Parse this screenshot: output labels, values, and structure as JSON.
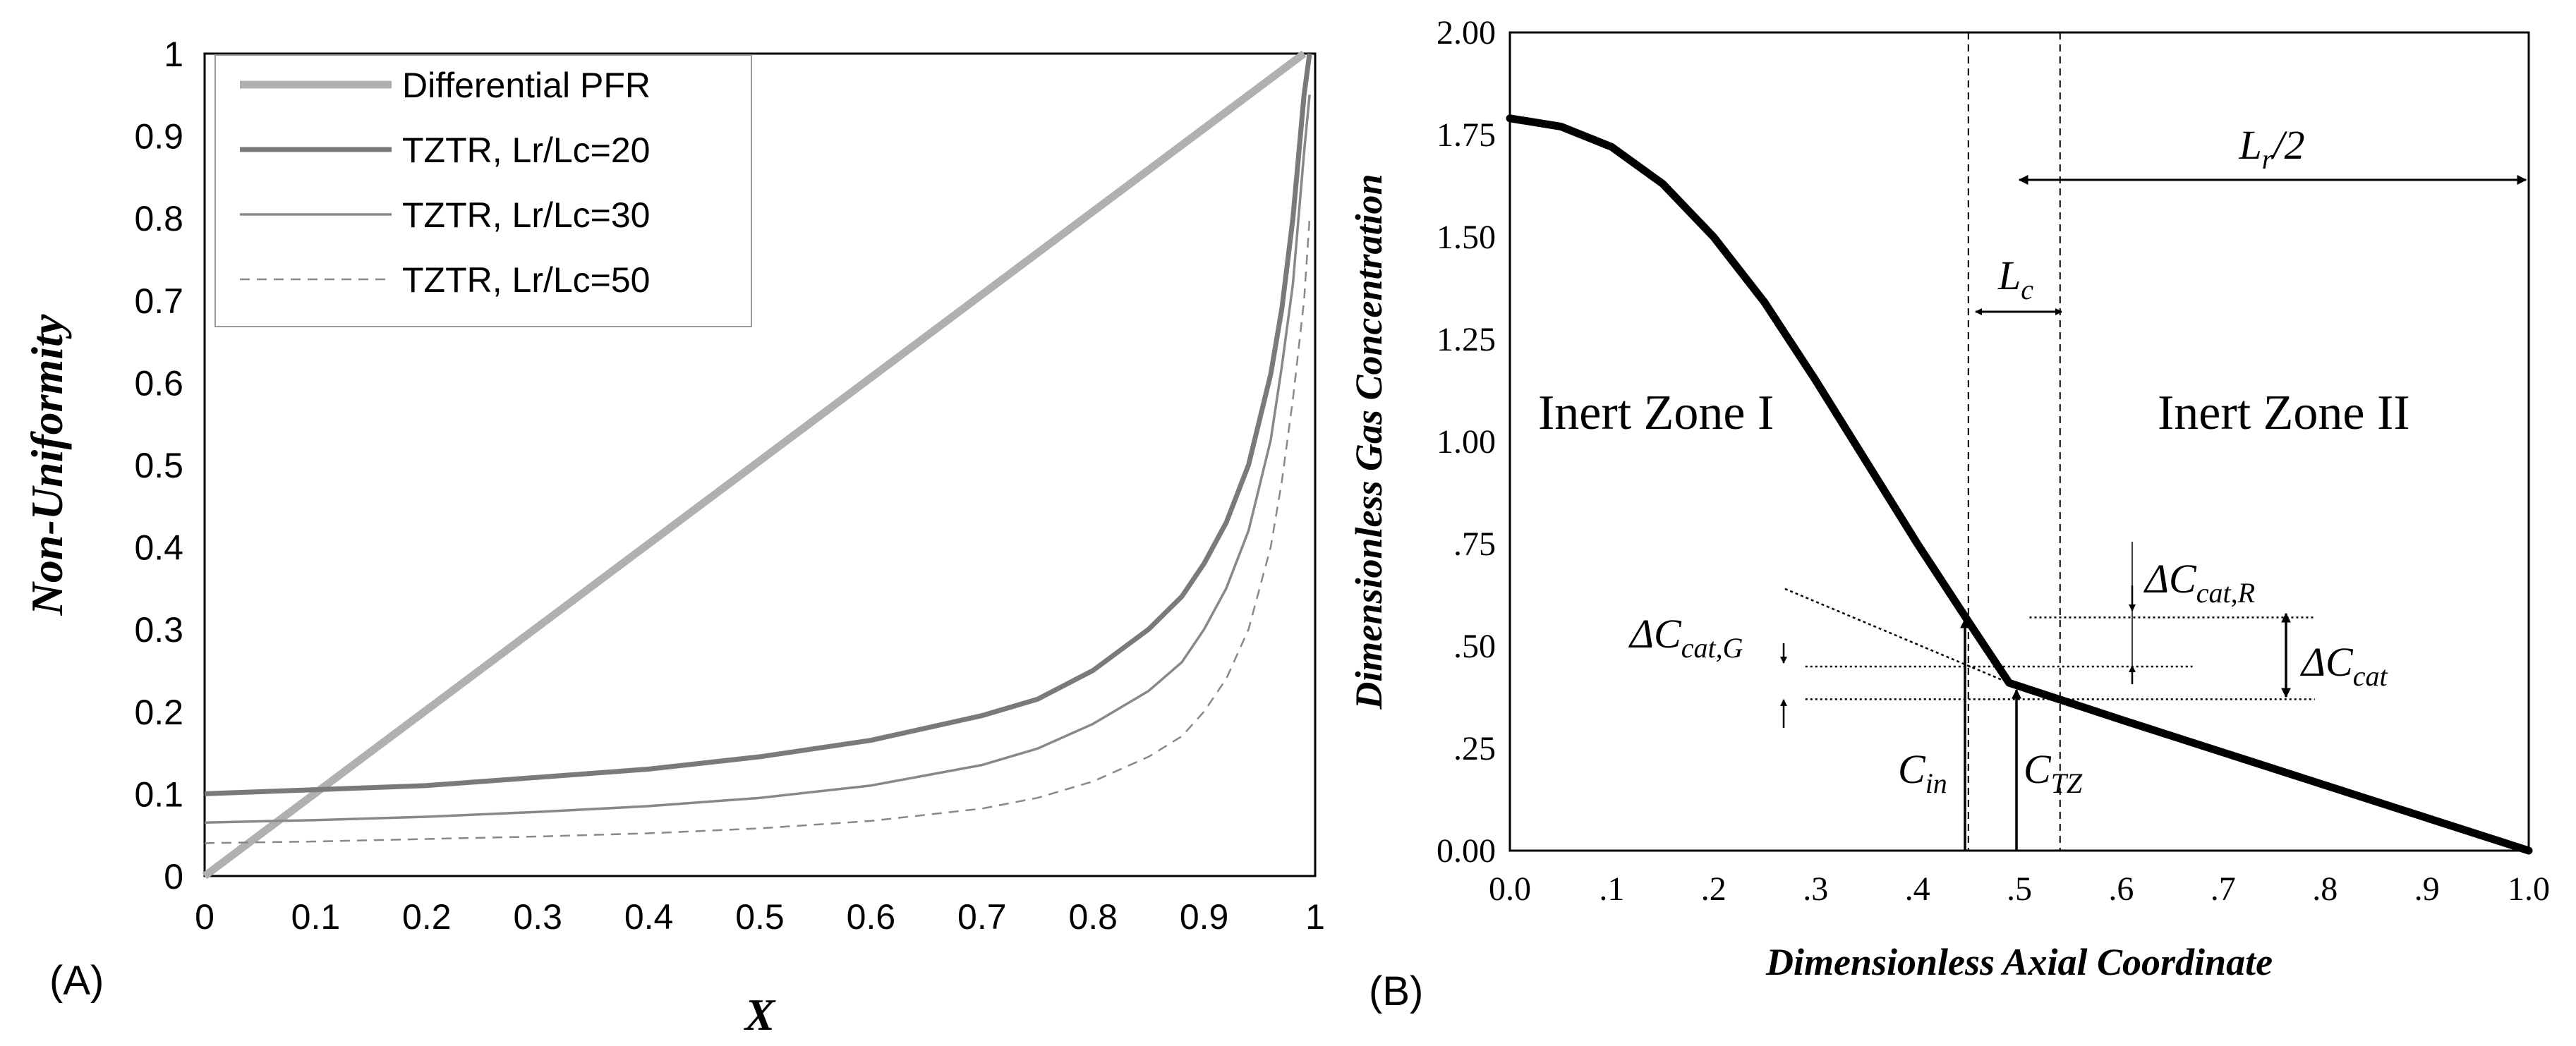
{
  "chart_data": [
    {
      "type": "line",
      "panel_label": "(A)",
      "xlabel": "X",
      "ylabel": "Non-Uniformity",
      "xlim": [
        0,
        1
      ],
      "ylim": [
        0,
        1
      ],
      "x_ticks": [
        "0",
        "0.1",
        "0.2",
        "0.3",
        "0.4",
        "0.5",
        "0.6",
        "0.7",
        "0.8",
        "0.9",
        "1"
      ],
      "y_ticks": [
        "0",
        "0.1",
        "0.2",
        "0.3",
        "0.4",
        "0.5",
        "0.6",
        "0.7",
        "0.8",
        "0.9",
        "1"
      ],
      "legend_position": "top-left",
      "series": [
        {
          "name": "Differential PFR",
          "color": "#b0b0b0",
          "style": "solid-thick",
          "x": [
            0,
            0.99
          ],
          "y": [
            0,
            1.0
          ]
        },
        {
          "name": "TZTR, Lr/Lc=20",
          "color": "#7a7a7a",
          "style": "solid-medium",
          "x": [
            0,
            0.1,
            0.2,
            0.3,
            0.4,
            0.5,
            0.6,
            0.7,
            0.75,
            0.8,
            0.85,
            0.88,
            0.9,
            0.92,
            0.94,
            0.96,
            0.97,
            0.98,
            0.99,
            0.995
          ],
          "y": [
            0.1,
            0.105,
            0.11,
            0.12,
            0.13,
            0.145,
            0.165,
            0.195,
            0.215,
            0.25,
            0.3,
            0.34,
            0.38,
            0.43,
            0.5,
            0.61,
            0.69,
            0.8,
            0.95,
            1.0
          ]
        },
        {
          "name": "TZTR, Lr/Lc=30",
          "color": "#888888",
          "style": "solid-thin",
          "x": [
            0,
            0.1,
            0.2,
            0.3,
            0.4,
            0.5,
            0.6,
            0.7,
            0.75,
            0.8,
            0.85,
            0.88,
            0.9,
            0.92,
            0.94,
            0.96,
            0.97,
            0.98,
            0.99,
            0.995
          ],
          "y": [
            0.065,
            0.068,
            0.072,
            0.078,
            0.085,
            0.095,
            0.11,
            0.135,
            0.155,
            0.185,
            0.225,
            0.26,
            0.3,
            0.35,
            0.42,
            0.53,
            0.62,
            0.72,
            0.88,
            0.95
          ]
        },
        {
          "name": "TZTR, Lr/Lc=50",
          "color": "#888888",
          "style": "dashed",
          "x": [
            0,
            0.1,
            0.2,
            0.3,
            0.4,
            0.5,
            0.6,
            0.7,
            0.75,
            0.8,
            0.85,
            0.88,
            0.9,
            0.92,
            0.94,
            0.96,
            0.97,
            0.98,
            0.99,
            0.995
          ],
          "y": [
            0.04,
            0.042,
            0.045,
            0.048,
            0.052,
            0.058,
            0.067,
            0.082,
            0.095,
            0.115,
            0.145,
            0.17,
            0.2,
            0.24,
            0.3,
            0.4,
            0.48,
            0.58,
            0.7,
            0.8
          ]
        }
      ]
    },
    {
      "type": "line",
      "panel_label": "(B)",
      "xlabel": "Dimensionless Axial Coordinate",
      "ylabel": "Dimensionless Gas Concentration",
      "xlim": [
        0,
        1
      ],
      "ylim": [
        0,
        2
      ],
      "x_ticks": [
        "0.0",
        ".1",
        ".2",
        ".3",
        ".4",
        ".5",
        ".6",
        ".7",
        ".8",
        ".9",
        "1.0"
      ],
      "y_ticks": [
        "0.00",
        ".25",
        ".50",
        ".75",
        "1.00",
        "1.25",
        "1.50",
        "1.75",
        "2.00"
      ],
      "series": [
        {
          "name": "Concentration profile",
          "color": "#000000",
          "x": [
            0,
            0.05,
            0.1,
            0.15,
            0.2,
            0.25,
            0.3,
            0.35,
            0.4,
            0.45,
            0.49,
            0.6,
            0.7,
            0.8,
            0.9,
            1.0
          ],
          "y": [
            1.79,
            1.77,
            1.72,
            1.63,
            1.5,
            1.34,
            1.15,
            0.95,
            0.75,
            0.56,
            0.41,
            0.32,
            0.24,
            0.16,
            0.08,
            0.0
          ]
        }
      ],
      "tangent_line": {
        "x": [
          0.27,
          0.49
        ],
        "y": [
          0.64,
          0.41
        ]
      },
      "vertical_dashed_lines_x": [
        0.45,
        0.54
      ],
      "dotted_levels": {
        "C_R": 0.57,
        "C_G": 0.45,
        "C_TZ": 0.37
      },
      "annotations": {
        "zone_left": "Inert Zone I",
        "zone_right": "Inert Zone II",
        "lr_base": "L",
        "lr_sub": "r",
        "lr_tail": "/2",
        "lc_base": "L",
        "lc_sub": "c",
        "cin_base": "C",
        "cin_sub": "in",
        "ctz_base": "C",
        "ctz_sub": "TZ",
        "dcg_base": "ΔC",
        "dcg_sub": "cat,G",
        "dcr_base": "ΔC",
        "dcr_sub": "cat,R",
        "dc_base": "ΔC",
        "dc_sub": "cat"
      }
    }
  ]
}
